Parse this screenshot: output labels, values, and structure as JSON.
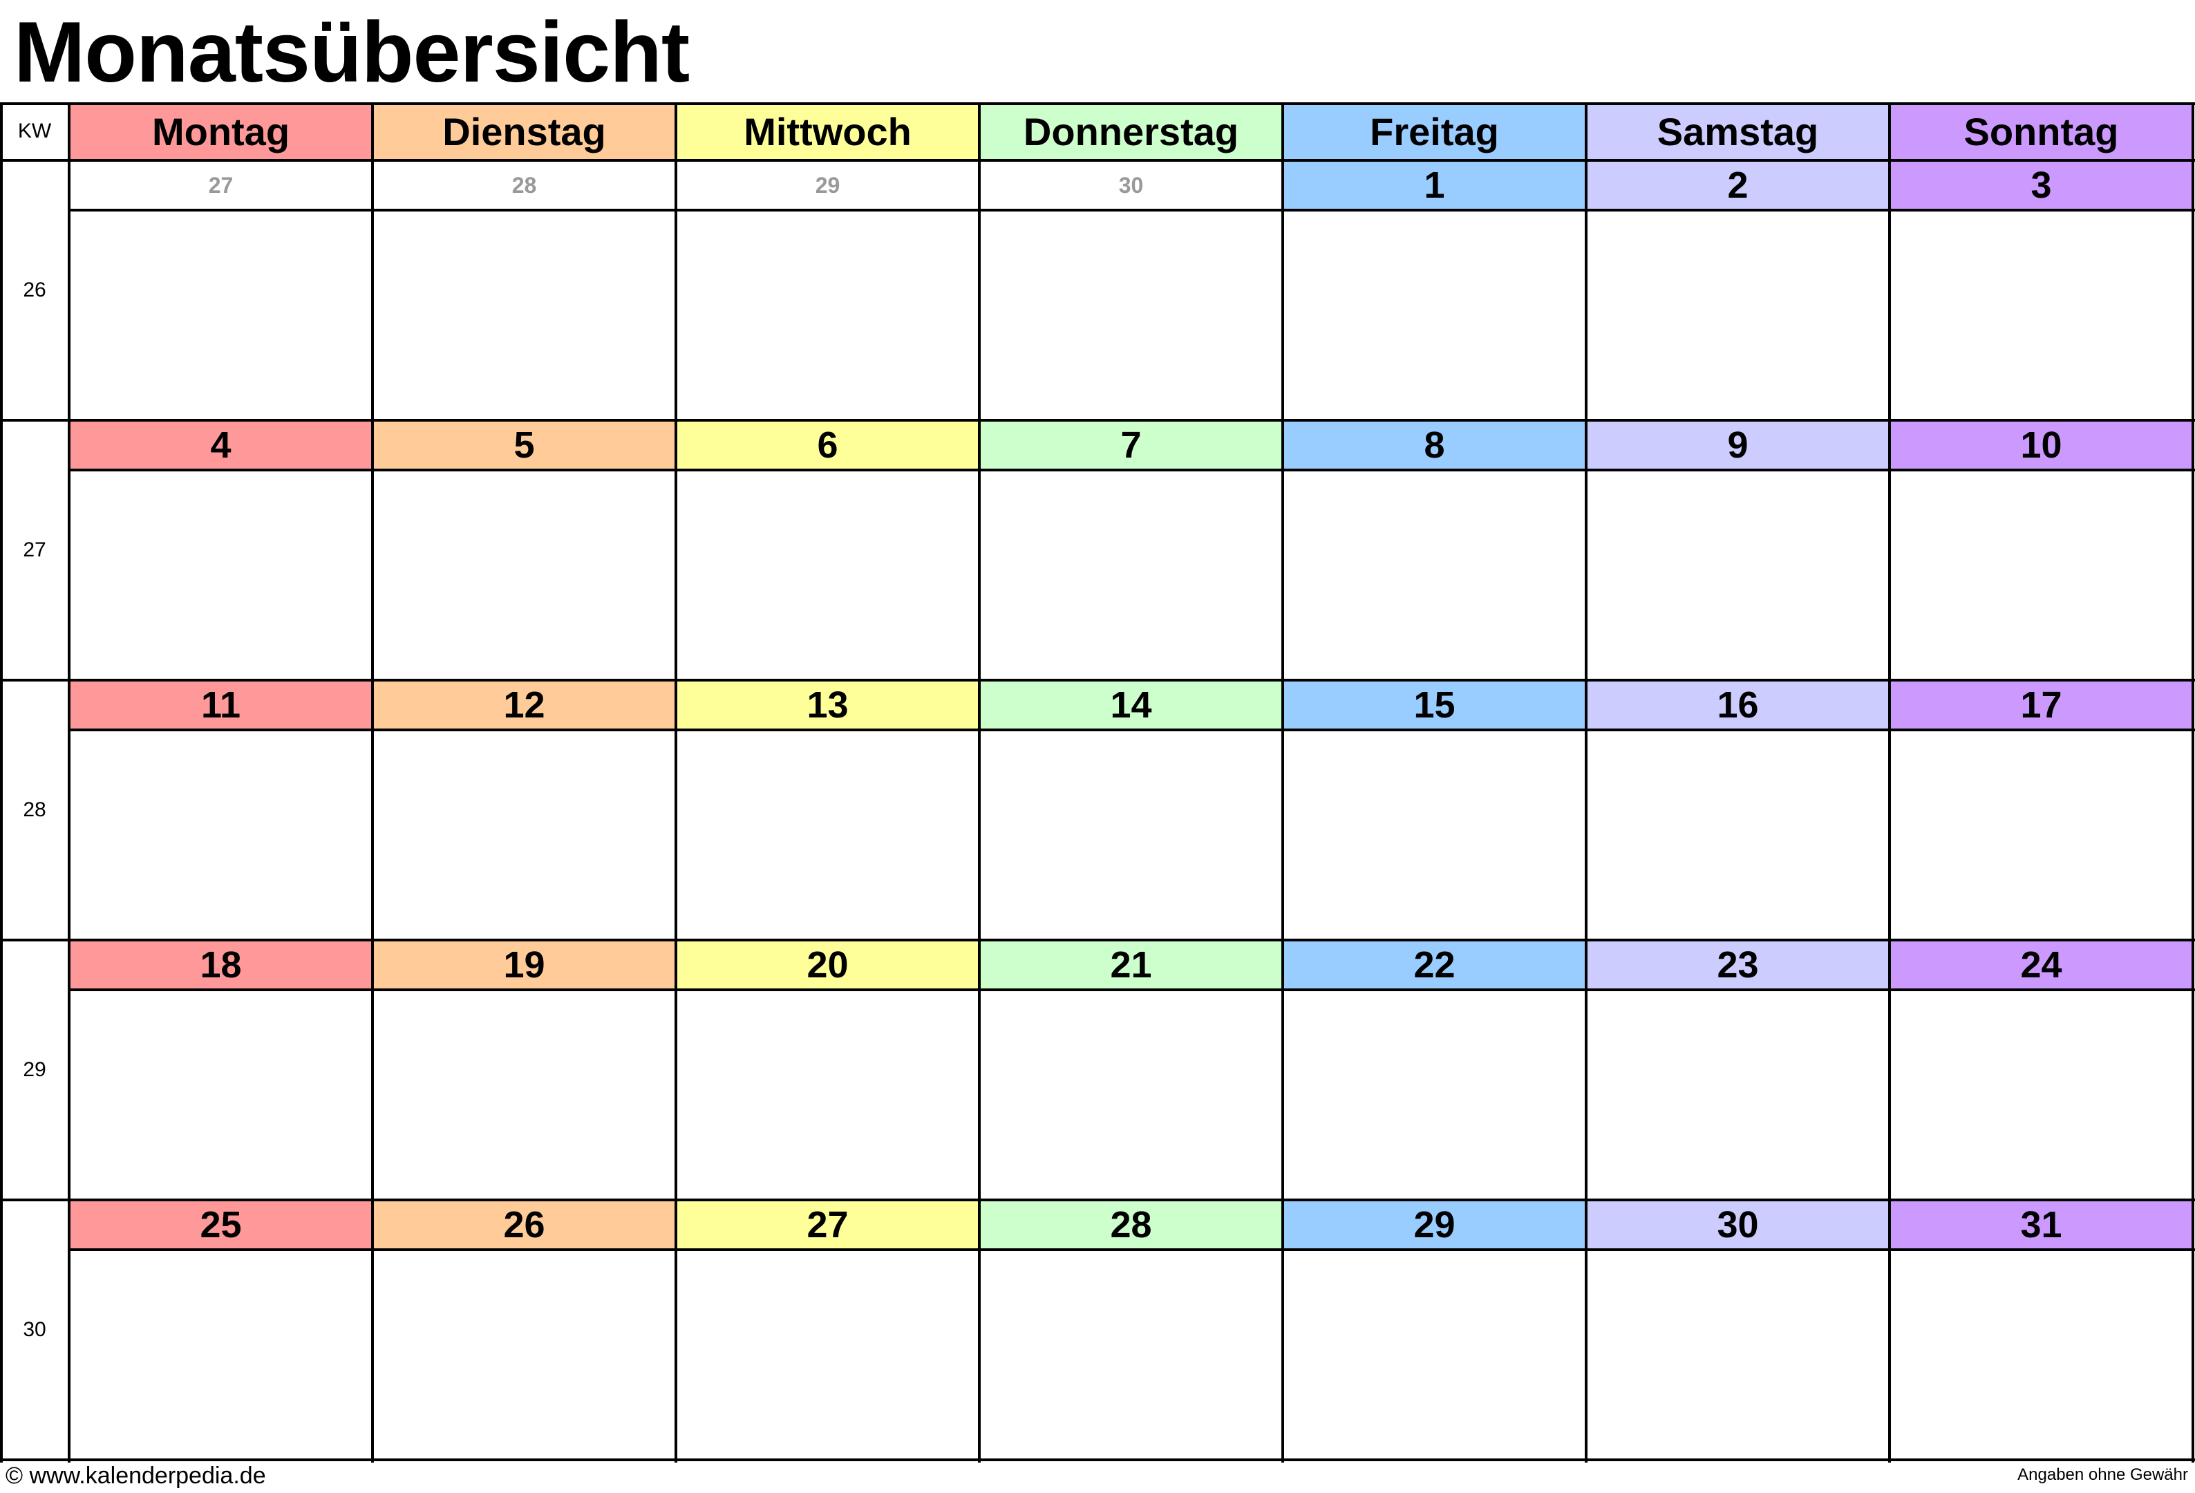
{
  "title": "Monatsübersicht",
  "kw_label": "KW",
  "weekdays": [
    {
      "label": "Montag",
      "color": "#FF9999"
    },
    {
      "label": "Dienstag",
      "color": "#FFCC99"
    },
    {
      "label": "Mittwoch",
      "color": "#FFFF99"
    },
    {
      "label": "Donnerstag",
      "color": "#CCFFCC"
    },
    {
      "label": "Freitag",
      "color": "#99CCFF"
    },
    {
      "label": "Samstag",
      "color": "#CCCCFF"
    },
    {
      "label": "Sonntag",
      "color": "#CC99FF"
    }
  ],
  "weeks": [
    {
      "kw": "26",
      "days": [
        {
          "day": "27",
          "current": false
        },
        {
          "day": "28",
          "current": false
        },
        {
          "day": "29",
          "current": false
        },
        {
          "day": "30",
          "current": false
        },
        {
          "day": "1",
          "current": true
        },
        {
          "day": "2",
          "current": true
        },
        {
          "day": "3",
          "current": true
        }
      ]
    },
    {
      "kw": "27",
      "days": [
        {
          "day": "4",
          "current": true
        },
        {
          "day": "5",
          "current": true
        },
        {
          "day": "6",
          "current": true
        },
        {
          "day": "7",
          "current": true
        },
        {
          "day": "8",
          "current": true
        },
        {
          "day": "9",
          "current": true
        },
        {
          "day": "10",
          "current": true
        }
      ]
    },
    {
      "kw": "28",
      "days": [
        {
          "day": "11",
          "current": true
        },
        {
          "day": "12",
          "current": true
        },
        {
          "day": "13",
          "current": true
        },
        {
          "day": "14",
          "current": true
        },
        {
          "day": "15",
          "current": true
        },
        {
          "day": "16",
          "current": true
        },
        {
          "day": "17",
          "current": true
        }
      ]
    },
    {
      "kw": "29",
      "days": [
        {
          "day": "18",
          "current": true
        },
        {
          "day": "19",
          "current": true
        },
        {
          "day": "20",
          "current": true
        },
        {
          "day": "21",
          "current": true
        },
        {
          "day": "22",
          "current": true
        },
        {
          "day": "23",
          "current": true
        },
        {
          "day": "24",
          "current": true
        }
      ]
    },
    {
      "kw": "30",
      "days": [
        {
          "day": "25",
          "current": true
        },
        {
          "day": "26",
          "current": true
        },
        {
          "day": "27",
          "current": true
        },
        {
          "day": "28",
          "current": true
        },
        {
          "day": "29",
          "current": true
        },
        {
          "day": "30",
          "current": true
        },
        {
          "day": "31",
          "current": true
        }
      ]
    }
  ],
  "footer": {
    "copyright": "© www.kalenderpedia.de",
    "disclaimer": "Angaben ohne Gewähr"
  }
}
